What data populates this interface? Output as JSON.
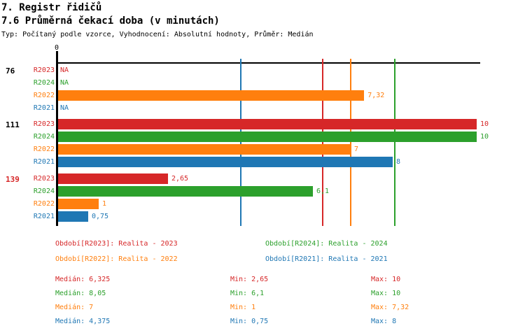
{
  "title": "7. Registr řidičů",
  "subtitle": "7.6 Průměrná čekací doba (v minutách)",
  "meta": "Typ: Počítaný podle vzorce, Vyhodnocení: Absolutní hodnoty, Průměr: Medián",
  "colors": {
    "R2023": "#d62728",
    "R2024": "#2ca02c",
    "R2022": "#ff7f0e",
    "R2021": "#1f77b4",
    "axis": "#000000",
    "group_label_default": "#000000",
    "group_label_highlight": "#d62728"
  },
  "axis": {
    "zero_label": "0",
    "min": 0,
    "max": 10
  },
  "chart_data": {
    "type": "bar",
    "orientation": "horizontal",
    "title": "7.6 Průměrná čekací doba (v minutách)",
    "xlim": [
      0,
      10
    ],
    "value_format": "decimal-comma",
    "series_order": [
      "R2023",
      "R2024",
      "R2022",
      "R2021"
    ],
    "groups": [
      {
        "label": "76",
        "highlighted": false,
        "bars": [
          {
            "series": "R2023",
            "value": null,
            "display": "NA"
          },
          {
            "series": "R2024",
            "value": null,
            "display": "NA"
          },
          {
            "series": "R2022",
            "value": 7.32,
            "display": "7,32"
          },
          {
            "series": "R2021",
            "value": null,
            "display": "NA"
          }
        ]
      },
      {
        "label": "111",
        "highlighted": false,
        "bars": [
          {
            "series": "R2023",
            "value": 10,
            "display": "10"
          },
          {
            "series": "R2024",
            "value": 10,
            "display": "10"
          },
          {
            "series": "R2022",
            "value": 7,
            "display": "7"
          },
          {
            "series": "R2021",
            "value": 8,
            "display": "8"
          }
        ]
      },
      {
        "label": "139",
        "highlighted": true,
        "bars": [
          {
            "series": "R2023",
            "value": 2.65,
            "display": "2,65"
          },
          {
            "series": "R2024",
            "value": 6.1,
            "display": "6,1"
          },
          {
            "series": "R2022",
            "value": 1,
            "display": "1"
          },
          {
            "series": "R2021",
            "value": 0.75,
            "display": "0,75"
          }
        ]
      }
    ],
    "median_lines": [
      {
        "series": "R2021",
        "value": 4.375
      },
      {
        "series": "R2023",
        "value": 6.325
      },
      {
        "series": "R2022",
        "value": 7
      },
      {
        "series": "R2024",
        "value": 8.05
      }
    ]
  },
  "legend": [
    {
      "series": "R2023",
      "text": "Období[R2023]: Realita - 2023"
    },
    {
      "series": "R2024",
      "text": "Období[R2024]: Realita - 2024"
    },
    {
      "series": "R2022",
      "text": "Období[R2022]: Realita - 2022"
    },
    {
      "series": "R2021",
      "text": "Období[R2021]: Realita - 2021"
    }
  ],
  "stats": [
    {
      "series": "R2023",
      "median": "Medián: 6,325",
      "min": "Min: 2,65",
      "max": "Max: 10"
    },
    {
      "series": "R2024",
      "median": "Medián: 8,05",
      "min": "Min: 6,1",
      "max": "Max: 10"
    },
    {
      "series": "R2022",
      "median": "Medián: 7",
      "min": "Min: 1",
      "max": "Max: 7,32"
    },
    {
      "series": "R2021",
      "median": "Medián: 4,375",
      "min": "Min: 0,75",
      "max": "Max: 8"
    }
  ]
}
